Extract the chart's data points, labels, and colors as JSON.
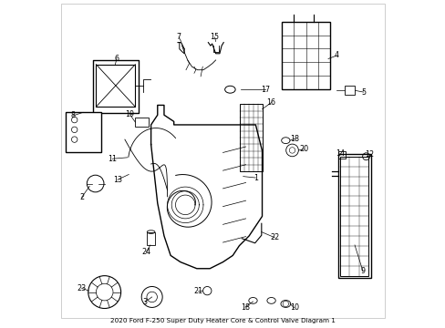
{
  "title": "2020 Ford F-250 Super Duty Heater Core & Control Valve Diagram 1",
  "background_color": "#ffffff",
  "line_color": "#000000",
  "label_color": "#000000",
  "fig_width": 4.89,
  "fig_height": 3.6,
  "dpi": 100
}
